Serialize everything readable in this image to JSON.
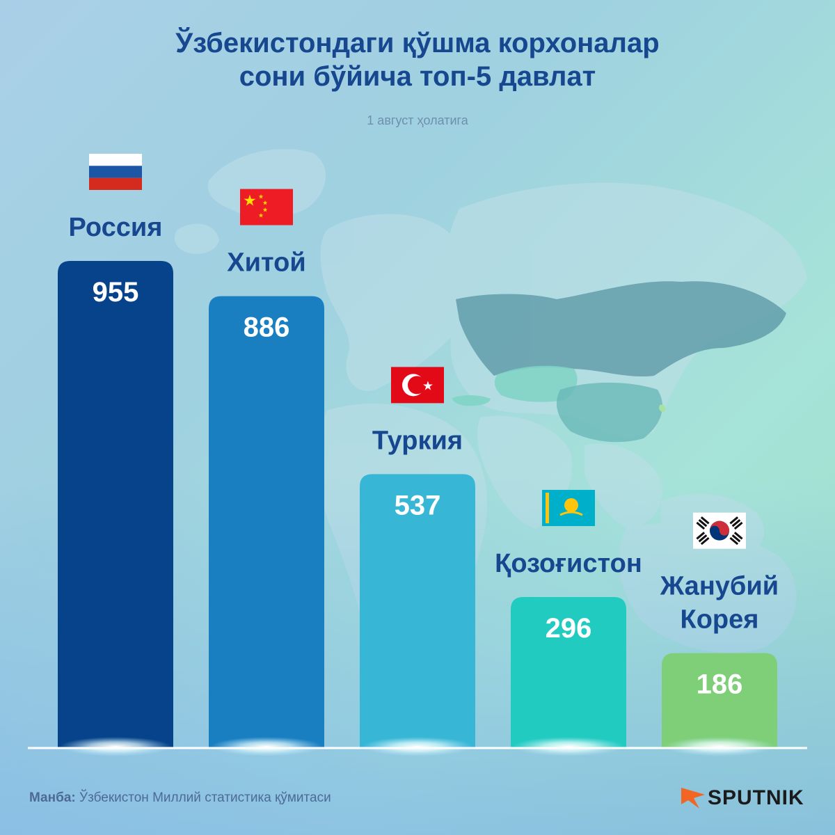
{
  "title_lines": [
    "Ўзбекистондаги қўшма корхоналар",
    "сони бўйича топ-5 давлат"
  ],
  "subtitle": "1 август ҳолатига",
  "colors": {
    "title": "#16478f",
    "label": "#16478f",
    "baseline": "#ffffff",
    "bars": [
      "#06438a",
      "#1a7fc1",
      "#37b6d5",
      "#21cbc0",
      "#7ecf78"
    ]
  },
  "chart_data": {
    "type": "bar",
    "title": "Ўзбекистондаги қўшма корхоналар сони бўйича топ-5 давлат",
    "subtitle": "1 август ҳолатига",
    "categories": [
      "Россия",
      "Хитой",
      "Туркия",
      "Қозоғистон",
      "Жанубий Корея"
    ],
    "category_lines": [
      [
        "Россия"
      ],
      [
        "Хитой"
      ],
      [
        "Туркия"
      ],
      [
        "Қозоғистон"
      ],
      [
        "Жанубий",
        "Корея"
      ]
    ],
    "values": [
      955,
      886,
      537,
      296,
      186
    ],
    "flags": [
      "russia-flag",
      "china-flag",
      "turkey-flag",
      "kazakhstan-flag",
      "south-korea-flag"
    ],
    "xlabel": "",
    "ylabel": "",
    "ylim": [
      0,
      955
    ],
    "grid": false,
    "legend": "none"
  },
  "source": {
    "label": "Манба:",
    "text": "Ўзбекистон Миллий статистика қўмитаси"
  },
  "brand": {
    "name": "SPUTNIK",
    "icon": "sputnik-logo-icon",
    "color": "#f26522"
  }
}
